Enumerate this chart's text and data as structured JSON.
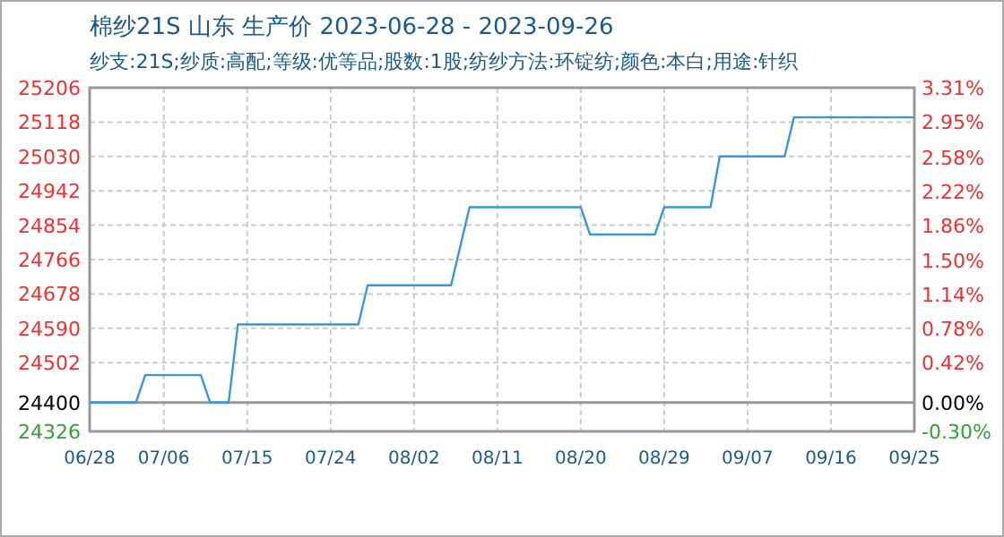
{
  "chart_data": {
    "type": "line",
    "title": "棉纱21S 山东 生产价 2023-06-28 - 2023-09-26",
    "subtitle": "纱支:21S;纱质:高配;等级:优等品;股数:1股;纺纱方法:环锭纺;颜色:本白;用途:针织",
    "x": [
      "--06-28",
      "--07-03",
      "--07-04",
      "--07-10",
      "--07-11",
      "--07-13",
      "--07-14",
      "--07-27",
      "--07-28",
      "--08-06",
      "--08-08",
      "--08-20",
      "--08-21",
      "--08-28",
      "--08-29",
      "--09-03",
      "--09-04",
      "--09-11",
      "--09-12",
      "--09-25"
    ],
    "series": [
      {
        "color": "#3a96d8",
        "values": [
          24400,
          24400,
          24470,
          24470,
          24400,
          24400,
          24600,
          24600,
          24700,
          24700,
          24900,
          24900,
          24830,
          24830,
          24900,
          24900,
          25030,
          25030,
          25130,
          25130
        ]
      }
    ],
    "xlim": [
      "--06-28",
      "--09-25"
    ],
    "xticks": [
      {
        "value": "--06-28",
        "label": "06/28"
      },
      {
        "value": "--07-06",
        "label": "07/06"
      },
      {
        "value": "--07-15",
        "label": "07/15"
      },
      {
        "value": "--07-24",
        "label": "07/24"
      },
      {
        "value": "--08-02",
        "label": "08/02"
      },
      {
        "value": "--08-11",
        "label": "08/11"
      },
      {
        "value": "--08-20",
        "label": "08/20"
      },
      {
        "value": "--08-29",
        "label": "08/29"
      },
      {
        "value": "--09-07",
        "label": "09/07"
      },
      {
        "value": "--09-16",
        "label": "09/16"
      },
      {
        "value": "--09-25",
        "label": "09/25"
      }
    ],
    "ylim": [
      24326,
      25206
    ],
    "yticks": [
      24326,
      24400,
      24502,
      24590,
      24678,
      24766,
      24854,
      24942,
      25030,
      25118,
      25206
    ],
    "y2lim": [
      -0.3,
      3.31
    ],
    "y2ticks": [
      {
        "value": -0.3,
        "label": "-0.30%"
      },
      {
        "value": 0,
        "label": "0.00%"
      },
      {
        "value": 0.42,
        "label": "0.42%"
      },
      {
        "value": 0.78,
        "label": "0.78%"
      },
      {
        "value": 1.14,
        "label": "1.14%"
      },
      {
        "value": 1.5,
        "label": "1.50%"
      },
      {
        "value": 1.86,
        "label": "1.86%"
      },
      {
        "value": 2.22,
        "label": "2.22%"
      },
      {
        "value": 2.58,
        "label": "2.58%"
      },
      {
        "value": 2.95,
        "label": "2.95%"
      },
      {
        "value": 3.31,
        "label": "3.31%"
      }
    ],
    "ref_lines": [
      {
        "axis": "y",
        "value": 24400,
        "color": "#999999"
      }
    ],
    "grid": true,
    "line_style": "solid",
    "marker": "none"
  }
}
